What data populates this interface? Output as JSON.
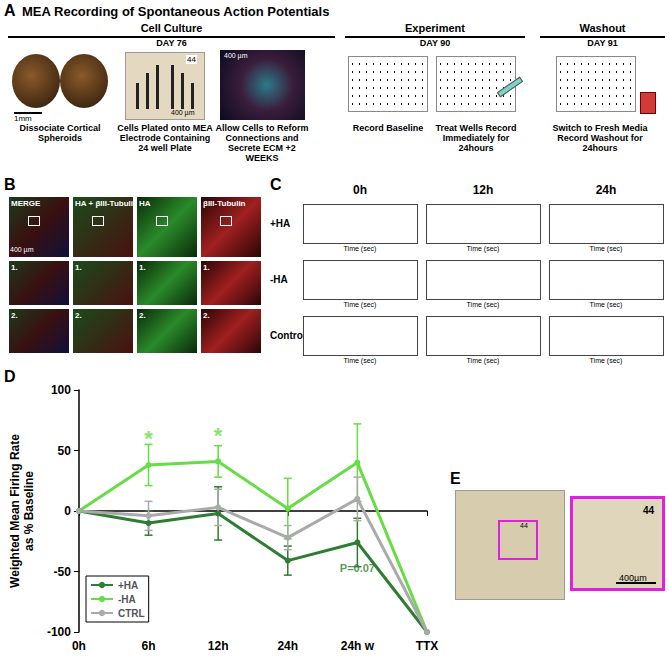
{
  "figure": {
    "A": {
      "label": "A",
      "title": "MEA Recording of Spontaneous Action Potentials",
      "sections": [
        {
          "title": "Cell Culture",
          "day": "DAY 76"
        },
        {
          "title": "Experiment",
          "day": "DAY 90"
        },
        {
          "title": "Washout",
          "day": "DAY 91"
        }
      ],
      "steps": [
        "Dissociate Cortical Spheroids",
        "Cells Plated onto MEA Electrode Containing 24 well Plate",
        "Allow Cells to Reform Connections and Secrete ECM +2 WEEKS",
        "Record Baseline",
        "Treat Wells Record Immediately for 24hours",
        "Switch to Fresh Media Record Washout for 24hours"
      ],
      "scale_bars": [
        "1mm",
        "400 µm",
        "400 µm"
      ],
      "well_label": "44"
    },
    "B": {
      "label": "B",
      "columns": [
        "MERGE",
        "HA + βIII-Tubulin",
        "HA",
        "βIII-Tubulin"
      ],
      "rows": [
        "1.",
        "2."
      ],
      "scale_bar": "400 µm"
    },
    "C": {
      "label": "C",
      "columns": [
        "0h",
        "12h",
        "24h"
      ],
      "rows": [
        "+HA",
        "-HA",
        "Control"
      ],
      "x_label": "Time (sec)"
    },
    "D": {
      "label": "D"
    },
    "E": {
      "label": "E",
      "well_label": "44",
      "scale_bar": "400µm"
    }
  },
  "chart_data": {
    "type": "line",
    "categories": [
      "0h",
      "6h",
      "12h",
      "24h",
      "24h w",
      "TTX"
    ],
    "y_label": "Weighted Mean Firing Rate\nas % Baseline",
    "ylim": [
      -100,
      100
    ],
    "yticks": [
      -100,
      -50,
      0,
      50,
      100
    ],
    "grid": false,
    "legend": "lower left",
    "marker": "circle",
    "series": [
      {
        "name": "+HA",
        "color": "#2e7d32",
        "values": [
          0,
          -10,
          -2,
          -41,
          -26,
          -100
        ],
        "errors": [
          null,
          10,
          22,
          12,
          20,
          null
        ]
      },
      {
        "name": "-HA",
        "color": "#66dd44",
        "values": [
          0,
          38,
          41,
          2,
          40,
          -100
        ],
        "errors": [
          null,
          17,
          13,
          25,
          32,
          null
        ]
      },
      {
        "name": "CTRL",
        "color": "#aaaaaa",
        "values": [
          0,
          -4,
          3,
          -22,
          10,
          -100
        ],
        "errors": [
          null,
          12,
          15,
          10,
          18,
          null
        ]
      }
    ],
    "annotations": [
      {
        "text": "*",
        "category": "6h",
        "y": 60,
        "color": "#66dd44"
      },
      {
        "text": "*",
        "category": "12h",
        "y": 62,
        "color": "#66dd44"
      },
      {
        "text": "P=0.07",
        "category": "24h w",
        "y": -47,
        "color": "#2e7d32"
      }
    ]
  }
}
